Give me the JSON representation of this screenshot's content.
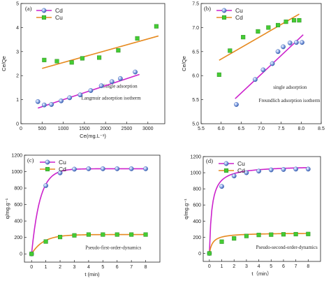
{
  "chart_data": [
    {
      "type": "scatter",
      "panel_label": "(a)",
      "xlabel": "Ce(mg.L⁻¹)",
      "ylabel": "Ce/Qe",
      "xlim": [
        0,
        3400
      ],
      "ylim": [
        0,
        5
      ],
      "xticks": [
        0,
        500,
        1000,
        1500,
        2000,
        2500,
        3000
      ],
      "yticks": [
        0,
        1,
        2,
        3,
        4,
        5
      ],
      "legend": {
        "position": "top-left",
        "entries": [
          "Cd",
          "Cu"
        ]
      },
      "annotations": [
        "Single adsorption",
        "Langmuir adsorption isotherm"
      ],
      "series": [
        {
          "name": "Cd",
          "marker": "sphere",
          "color": "#6a8fd8",
          "x": [
            400,
            550,
            720,
            950,
            1150,
            1400,
            1650,
            1900,
            2150,
            2350,
            2700
          ],
          "y": [
            0.92,
            0.78,
            0.8,
            0.95,
            1.08,
            1.2,
            1.38,
            1.58,
            1.75,
            1.88,
            2.15
          ],
          "fit": {
            "x": [
              400,
              2800
            ],
            "y": [
              0.65,
              2.05
            ],
            "color": "#cc22cc"
          }
        },
        {
          "name": "Cu",
          "marker": "square",
          "color": "#44cc33",
          "x": [
            550,
            850,
            1200,
            1450,
            1850,
            2300,
            2750,
            3200
          ],
          "y": [
            2.65,
            2.6,
            2.55,
            2.72,
            2.75,
            3.05,
            3.55,
            4.05
          ],
          "fit": {
            "x": [
              500,
              3250
            ],
            "y": [
              2.3,
              3.65
            ],
            "color": "#e68a20"
          }
        }
      ]
    },
    {
      "type": "scatter",
      "panel_label": "(b)",
      "xlabel": "",
      "ylabel": "Ce/Qe",
      "xlim": [
        5.5,
        8.5
      ],
      "ylim": [
        5.0,
        7.5
      ],
      "xticks": [
        5.5,
        6.0,
        6.5,
        7.0,
        7.5,
        8.0,
        8.5
      ],
      "xtick_labels": [
        "5.5",
        "6.0",
        "6.5",
        "7.0",
        "7.5",
        "8.0",
        "8.5"
      ],
      "yticks": [
        5.0,
        5.5,
        6.0,
        6.5,
        7.0,
        7.5
      ],
      "ytick_labels": [
        "5.0",
        "5.5",
        "6.0",
        "6.5",
        "7.0",
        "7.5"
      ],
      "legend": {
        "position": "top-left",
        "entries": [
          "Cu",
          "Cd"
        ]
      },
      "annotations": [
        "single adsorption",
        "Freundlich adsorption isotherm"
      ],
      "series": [
        {
          "name": "Cu",
          "marker": "sphere",
          "color": "#6a8fd8",
          "x": [
            6.38,
            6.85,
            7.05,
            7.28,
            7.42,
            7.55,
            7.72,
            7.88,
            8.02
          ],
          "y": [
            5.4,
            5.92,
            6.12,
            6.25,
            6.5,
            6.6,
            6.68,
            6.69,
            6.69
          ],
          "fit": {
            "x": [
              6.35,
              8.05
            ],
            "y": [
              5.52,
              6.85
            ],
            "color": "#cc22cc"
          }
        },
        {
          "name": "Cd",
          "marker": "square",
          "color": "#44cc33",
          "x": [
            5.95,
            6.22,
            6.55,
            6.92,
            7.18,
            7.42,
            7.62,
            7.82,
            7.95
          ],
          "y": [
            6.02,
            6.52,
            6.8,
            6.92,
            7.0,
            7.05,
            7.12,
            7.15,
            7.15
          ],
          "fit": {
            "x": [
              5.95,
              7.95
            ],
            "y": [
              6.32,
              7.28
            ],
            "color": "#e68a20"
          }
        }
      ]
    },
    {
      "type": "scatter",
      "panel_label": "(c)",
      "xlabel": "t (min)",
      "ylabel": "q/mg.g⁻¹",
      "xlim": [
        -0.5,
        9
      ],
      "ylim": [
        -100,
        1200
      ],
      "xticks": [
        0,
        1,
        2,
        3,
        4,
        5,
        6,
        7,
        8
      ],
      "yticks": [
        0,
        200,
        400,
        600,
        800,
        1000,
        1200
      ],
      "legend": {
        "position": "top-left",
        "entries": [
          "Cu",
          "Cd"
        ]
      },
      "annotations": [
        "Pseudo-first-order-dynamics"
      ],
      "series": [
        {
          "name": "Cu",
          "marker": "sphere",
          "color": "#6a8fd8",
          "x": [
            0,
            1,
            2,
            3,
            4,
            5,
            6,
            7,
            8
          ],
          "y": [
            0,
            830,
            985,
            1030,
            1035,
            1035,
            1035,
            1035,
            1035
          ],
          "fit": {
            "model": "first-order",
            "qe": 1035,
            "k": 1.7,
            "color": "#cc22cc"
          }
        },
        {
          "name": "Cd",
          "marker": "square",
          "color": "#44cc33",
          "x": [
            0,
            1,
            2,
            3,
            4,
            5,
            6,
            7,
            8
          ],
          "y": [
            0,
            150,
            205,
            225,
            235,
            235,
            235,
            235,
            235
          ],
          "fit": {
            "model": "first-order",
            "qe": 235,
            "k": 1.2,
            "color": "#e68a20"
          }
        }
      ]
    },
    {
      "type": "scatter",
      "panel_label": "(d)",
      "xlabel": "t（min）",
      "ylabel": "q/mg.g⁻¹",
      "xlim": [
        -0.5,
        9
      ],
      "ylim": [
        -100,
        1200
      ],
      "xticks": [
        0,
        1,
        2,
        3,
        4,
        5,
        6,
        7,
        8
      ],
      "yticks": [
        0,
        200,
        400,
        600,
        800,
        1000,
        1200
      ],
      "legend": {
        "position": "top-left",
        "entries": [
          "Cu",
          "Cd"
        ]
      },
      "annotations": [
        "Pseudo-second-order-dynamics"
      ],
      "series": [
        {
          "name": "Cu",
          "marker": "sphere",
          "color": "#6a8fd8",
          "x": [
            0,
            1,
            2,
            3,
            4,
            5,
            6,
            7,
            8
          ],
          "y": [
            0,
            830,
            960,
            1000,
            1020,
            1035,
            1040,
            1045,
            1045
          ],
          "fit": {
            "model": "second-order",
            "qe": 1090,
            "k": 0.0045,
            "color": "#cc22cc"
          }
        },
        {
          "name": "Cd",
          "marker": "square",
          "color": "#44cc33",
          "x": [
            0,
            1,
            2,
            3,
            4,
            5,
            6,
            7,
            8
          ],
          "y": [
            0,
            145,
            185,
            215,
            228,
            232,
            236,
            238,
            240
          ],
          "fit": {
            "model": "second-order",
            "qe": 255,
            "k": 0.015,
            "color": "#e68a20"
          }
        }
      ]
    }
  ]
}
